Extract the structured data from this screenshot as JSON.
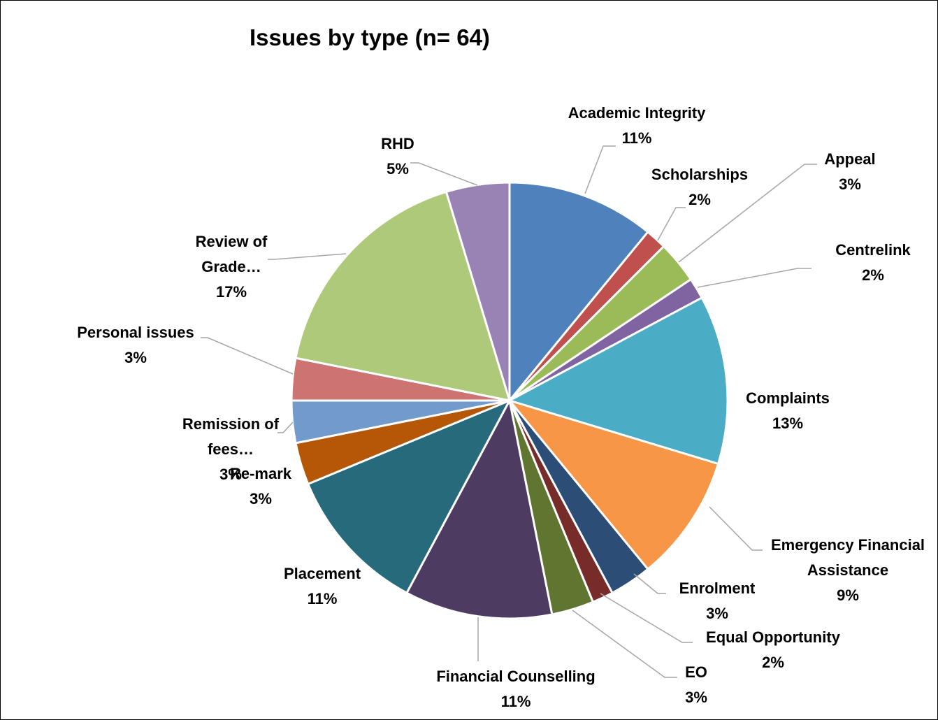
{
  "chart_data": {
    "type": "pie",
    "title": "Issues by type (n= 64)",
    "slices": [
      {
        "name": "Academic Integrity",
        "label_lines": [
          "Academic Integrity"
        ],
        "percent_label": "11%",
        "value": 7,
        "color": "#4F81BD"
      },
      {
        "name": "Scholarships",
        "label_lines": [
          "Scholarships"
        ],
        "percent_label": "2%",
        "value": 1,
        "color": "#C0504D"
      },
      {
        "name": "Appeal",
        "label_lines": [
          "Appeal"
        ],
        "percent_label": "3%",
        "value": 2,
        "color": "#9BBB59"
      },
      {
        "name": "Centrelink",
        "label_lines": [
          "Centrelink"
        ],
        "percent_label": "2%",
        "value": 1,
        "color": "#8064A2"
      },
      {
        "name": "Complaints",
        "label_lines": [
          "Complaints"
        ],
        "percent_label": "13%",
        "value": 8,
        "color": "#4BACC6"
      },
      {
        "name": "Emergency Financial Assistance",
        "label_lines": [
          "Emergency Financial",
          "Assistance"
        ],
        "percent_label": "9%",
        "value": 6,
        "color": "#F79646"
      },
      {
        "name": "Enrolment",
        "label_lines": [
          "Enrolment"
        ],
        "percent_label": "3%",
        "value": 2,
        "color": "#2C4D75"
      },
      {
        "name": "Equal Opportunity",
        "label_lines": [
          "Equal Opportunity"
        ],
        "percent_label": "2%",
        "value": 1,
        "color": "#772C2A"
      },
      {
        "name": "EO",
        "label_lines": [
          "EO"
        ],
        "percent_label": "3%",
        "value": 2,
        "color": "#5F7530"
      },
      {
        "name": "Financial Counselling",
        "label_lines": [
          "Financial Counselling"
        ],
        "percent_label": "11%",
        "value": 7,
        "color": "#4D3B62"
      },
      {
        "name": "Placement",
        "label_lines": [
          "Placement"
        ],
        "percent_label": "11%",
        "value": 7,
        "color": "#276A7C"
      },
      {
        "name": "Re-mark",
        "label_lines": [
          "Re-mark"
        ],
        "percent_label": "3%",
        "value": 2,
        "color": "#B65708"
      },
      {
        "name": "Remission of fees…",
        "label_lines": [
          "Remission of",
          "fees…"
        ],
        "percent_label": "3%",
        "value": 2,
        "color": "#729ACA"
      },
      {
        "name": "Personal issues",
        "label_lines": [
          "Personal issues"
        ],
        "percent_label": "3%",
        "value": 2,
        "color": "#CD7371"
      },
      {
        "name": "Review of Grade…",
        "label_lines": [
          "Review of",
          "Grade…"
        ],
        "percent_label": "17%",
        "value": 11,
        "color": "#AFC97A"
      },
      {
        "name": "RHD",
        "label_lines": [
          "RHD"
        ],
        "percent_label": "5%",
        "value": 3,
        "color": "#9983B5"
      }
    ],
    "legend": "none",
    "data_labels": "outside with leader lines"
  }
}
